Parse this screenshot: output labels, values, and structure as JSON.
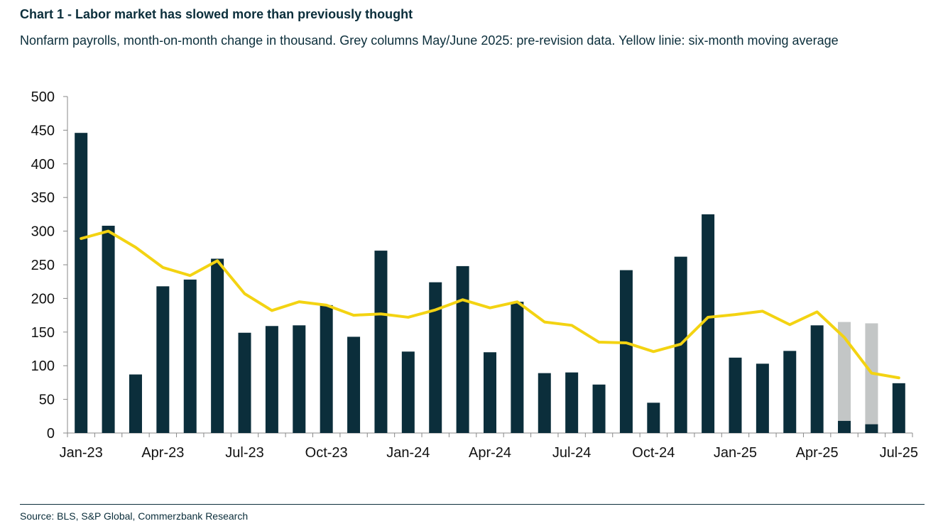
{
  "title": "Chart 1 - Labor market has slowed more than previously thought",
  "subtitle": "Nonfarm payrolls, month-on-month change in thousand. Grey columns May/June 2025: pre-revision data. Yellow linie: six-month moving average",
  "source": "Source: BLS, S&P Global, Commerzbank Research",
  "colors": {
    "bars": "#0b2e3b",
    "pre_revision": "#c3c6c6",
    "moving_average": "#f3d312"
  },
  "chart_data": {
    "type": "bar",
    "ylim": [
      0,
      500
    ],
    "yticks": [
      0,
      50,
      100,
      150,
      200,
      250,
      300,
      350,
      400,
      450,
      500
    ],
    "x_tick_labels": [
      "Jan-23",
      "Apr-23",
      "Jul-23",
      "Oct-23",
      "Jan-24",
      "Apr-24",
      "Jul-24",
      "Oct-24",
      "Jan-25",
      "Apr-25",
      "Jul-25"
    ],
    "x_tick_positions": [
      0,
      3,
      6,
      9,
      12,
      15,
      18,
      21,
      24,
      27,
      30
    ],
    "categories": [
      "Jan-23",
      "Feb-23",
      "Mar-23",
      "Apr-23",
      "May-23",
      "Jun-23",
      "Jul-23",
      "Aug-23",
      "Sep-23",
      "Oct-23",
      "Nov-23",
      "Dec-23",
      "Jan-24",
      "Feb-24",
      "Mar-24",
      "Apr-24",
      "May-24",
      "Jun-24",
      "Jul-24",
      "Aug-24",
      "Sep-24",
      "Oct-24",
      "Nov-24",
      "Dec-24",
      "Jan-25",
      "Feb-25",
      "Mar-25",
      "Apr-25",
      "May-25",
      "Jun-25",
      "Jul-25"
    ],
    "series": [
      {
        "type": "bar",
        "values": [
          446,
          308,
          87,
          218,
          228,
          259,
          149,
          159,
          160,
          190,
          143,
          271,
          121,
          224,
          248,
          120,
          195,
          89,
          90,
          72,
          242,
          45,
          262,
          325,
          112,
          103,
          122,
          160,
          18,
          13,
          74
        ]
      },
      {
        "type": "bar",
        "values": [
          null,
          null,
          null,
          null,
          null,
          null,
          null,
          null,
          null,
          null,
          null,
          null,
          null,
          null,
          null,
          null,
          null,
          null,
          null,
          null,
          null,
          null,
          null,
          null,
          null,
          null,
          null,
          null,
          165,
          163,
          null
        ]
      },
      {
        "type": "line",
        "values": [
          289,
          300,
          276,
          246,
          234,
          256,
          207,
          182,
          195,
          190,
          175,
          177,
          172,
          183,
          198,
          186,
          195,
          165,
          160,
          135,
          134,
          121,
          132,
          172,
          176,
          181,
          161,
          180,
          142,
          89,
          82
        ]
      }
    ]
  }
}
